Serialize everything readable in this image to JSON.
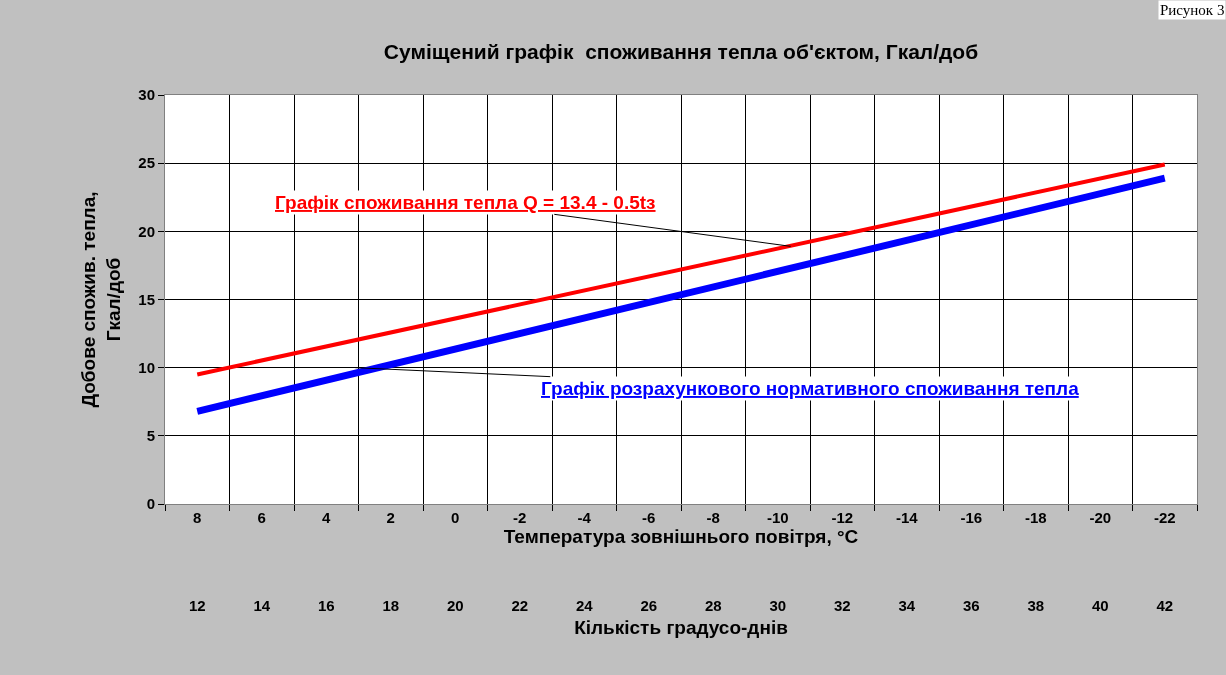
{
  "chart_data": {
    "type": "line",
    "title": "Суміщений графік  споживання тепла об'єктом, Гкал/доб",
    "xlabel": "Температура зовнішнього повітря, °C",
    "ylabel": "Добове спожив. тепла,\nГкал/доб",
    "x2label": "Кількість градусо-днів",
    "x": [
      8,
      -22
    ],
    "series": [
      {
        "color": "#ff0000",
        "values": [
          9.5,
          24.9
        ]
      },
      {
        "color": "#0000ff",
        "values": [
          6.8,
          23.9
        ]
      }
    ],
    "xlim": [
      9,
      -23
    ],
    "xticks": [
      8,
      6,
      4,
      2,
      0,
      -2,
      -4,
      -6,
      -8,
      -10,
      -12,
      -14,
      -16,
      -18,
      -20,
      -22
    ],
    "x2lim": [
      11,
      43
    ],
    "x2ticks": [
      12,
      14,
      16,
      18,
      20,
      22,
      24,
      26,
      28,
      30,
      32,
      34,
      36,
      38,
      40,
      42
    ],
    "ylim": [
      0,
      30
    ],
    "yticks": [
      0,
      5,
      10,
      15,
      20,
      25,
      30
    ],
    "grid": true,
    "marker": "none",
    "line_style": "solid",
    "annotations": [
      {
        "text": "Графік споживання тепла Q = 13.4 - 0.5tз",
        "x": -10.4,
        "y": 18.9
      },
      {
        "text": "Графік розрахункового нормативного споживання тепла",
        "x": 3.1,
        "y": 10
      },
      "Рисунок 3"
    ]
  }
}
